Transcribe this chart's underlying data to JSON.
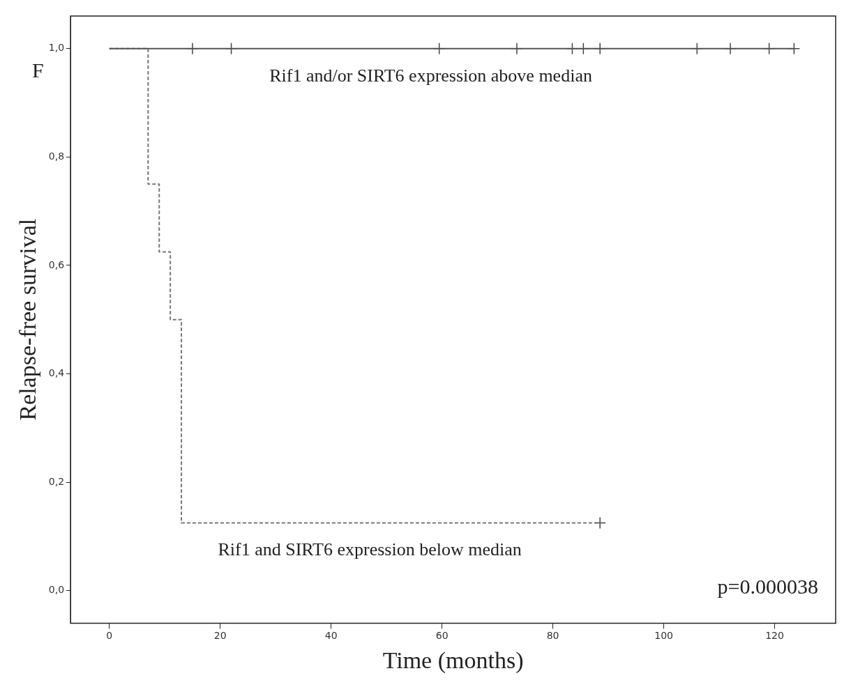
{
  "chart_data": {
    "type": "step",
    "xlabel": "Time (months)",
    "ylabel": "Relapse-free survival",
    "xlim": [
      -7,
      131
    ],
    "xticks": [
      0,
      20,
      40,
      60,
      80,
      100,
      120
    ],
    "ylim": [
      -0.06,
      1.06
    ],
    "yticks": [
      {
        "value": 0,
        "label": "0,0"
      },
      {
        "value": 0.2,
        "label": "0,2"
      },
      {
        "value": 0.4,
        "label": "0,4"
      },
      {
        "value": 0.6,
        "label": "0,6"
      },
      {
        "value": 0.8,
        "label": "0,8"
      },
      {
        "value": 1,
        "label": "1,0"
      }
    ],
    "grid": false,
    "legend": false,
    "series": [
      {
        "name": "Rif1 and/or SIRT6 expression above median",
        "color": "#555555",
        "line_style": "solid",
        "marker": "none",
        "x": [
          0,
          123.5
        ],
        "values": [
          1,
          1
        ]
      },
      {
        "name": "Rif1 and SIRT6 expression below median",
        "color": "#777777",
        "line_style": "dashed",
        "marker": "none",
        "x": [
          0,
          7,
          9,
          11,
          13,
          88.5
        ],
        "values": [
          1,
          0.75,
          0.625,
          0.5,
          0.125,
          0.125
        ]
      },
      {
        "type": "scatter",
        "color": "#444444",
        "marker": "cross",
        "x": [
          15,
          22,
          59.5,
          73.5,
          83.5,
          85.5,
          88.5,
          106,
          112,
          119,
          123.5
        ],
        "values": [
          1,
          1,
          1,
          1,
          1,
          1,
          1,
          1,
          1,
          1,
          1
        ]
      },
      {
        "type": "scatter",
        "color": "#444444",
        "marker": "cross",
        "x": [
          88.5
        ],
        "values": [
          0.125
        ]
      }
    ],
    "annotations": [
      "F",
      "p=0.000038"
    ]
  }
}
